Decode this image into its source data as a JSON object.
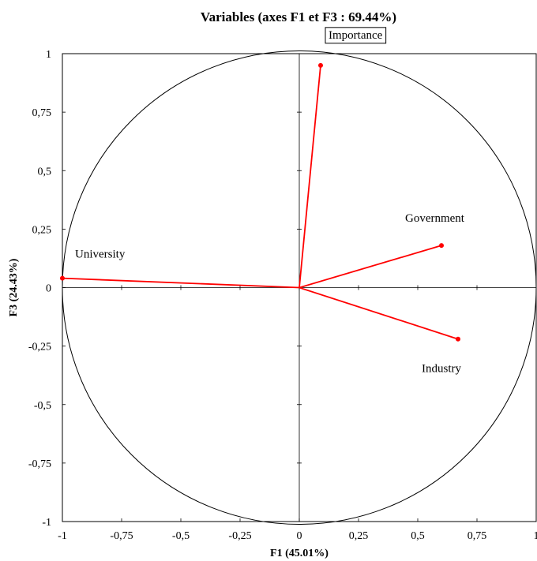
{
  "chart_data": {
    "type": "scatter",
    "title": "Variables (axes F1 et F3 : 69.44%)",
    "xlabel": "F1 (45.01%)",
    "ylabel": "F3 (24.43%)",
    "xlim": [
      -1,
      1
    ],
    "ylim": [
      -1,
      1
    ],
    "x_ticks": [
      {
        "value": -1,
        "label": "-1"
      },
      {
        "value": -0.75,
        "label": "-0,75"
      },
      {
        "value": -0.5,
        "label": "-0,5"
      },
      {
        "value": -0.25,
        "label": "-0,25"
      },
      {
        "value": 0,
        "label": "0"
      },
      {
        "value": 0.25,
        "label": "0,25"
      },
      {
        "value": 0.5,
        "label": "0,5"
      },
      {
        "value": 0.75,
        "label": "0,75"
      },
      {
        "value": 1,
        "label": "1"
      }
    ],
    "y_ticks": [
      {
        "value": 1,
        "label": "1"
      },
      {
        "value": 0.75,
        "label": "0,75"
      },
      {
        "value": 0.5,
        "label": "0,5"
      },
      {
        "value": 0.25,
        "label": "0,25"
      },
      {
        "value": 0,
        "label": "0"
      },
      {
        "value": -0.25,
        "label": "-0,25"
      },
      {
        "value": -0.5,
        "label": "-0,5"
      },
      {
        "value": -0.75,
        "label": "-0,75"
      },
      {
        "value": -1,
        "label": "-1"
      }
    ],
    "unit_circle": true,
    "grid": false,
    "vector_color": "#ff0000",
    "points": [
      {
        "label": "Importance",
        "x": 0.09,
        "y": 0.95,
        "boxed": true
      },
      {
        "label": "Government",
        "x": 0.6,
        "y": 0.18,
        "boxed": false
      },
      {
        "label": "Industry",
        "x": 0.67,
        "y": -0.22,
        "boxed": false
      },
      {
        "label": "University",
        "x": -1.0,
        "y": 0.04,
        "boxed": false
      }
    ]
  }
}
